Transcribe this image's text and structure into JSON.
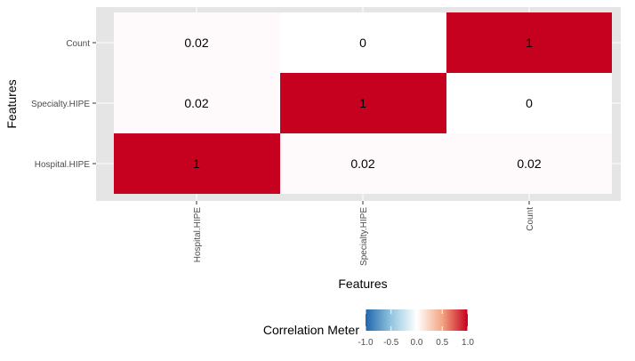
{
  "chart_data": {
    "type": "heatmap",
    "title": "",
    "xlabel": "Features",
    "ylabel": "Features",
    "x_categories": [
      "Hospital.HIPE",
      "Specialty.HIPE",
      "Count"
    ],
    "y_categories": [
      "Count",
      "Specialty.HIPE",
      "Hospital.HIPE"
    ],
    "matrix": [
      [
        "0.02",
        "0",
        "1"
      ],
      [
        "0.02",
        "1",
        "0"
      ],
      [
        "1",
        "0.02",
        "0.02"
      ]
    ],
    "values": [
      [
        0.02,
        0,
        1
      ],
      [
        0.02,
        1,
        0
      ],
      [
        1,
        0.02,
        0.02
      ]
    ],
    "legend": {
      "title": "Correlation Meter",
      "ticks": [
        "-1.0",
        "-0.5",
        "0.0",
        "0.5",
        "1.0"
      ],
      "min": -1,
      "max": 1,
      "position": "bottom"
    },
    "colors": {
      "panel_background": "#e5e5e5",
      "grid": "#ffffff",
      "low": "#2166ac",
      "mid": "#ffffff",
      "high": "#c6001f"
    }
  }
}
